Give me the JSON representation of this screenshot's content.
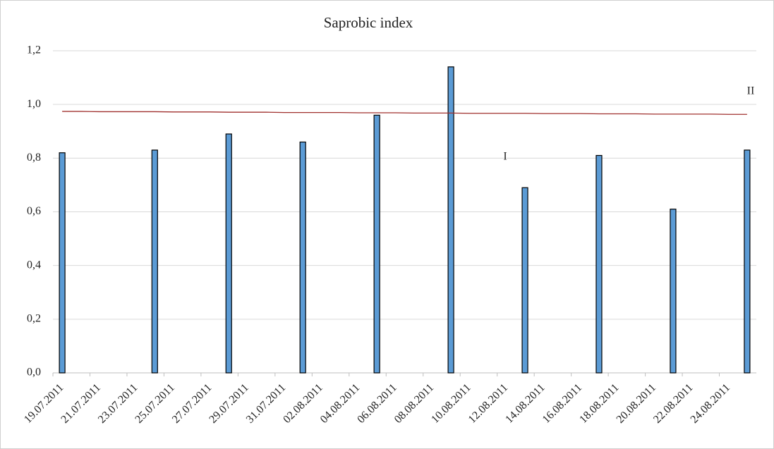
{
  "chart_data": {
    "type": "bar",
    "title": "Saprobic index",
    "categories": [
      "19.07.2011",
      null,
      "21.07.2011",
      null,
      "23.07.2011",
      null,
      "25.07.2011",
      null,
      "27.07.2011",
      null,
      "29.07.2011",
      null,
      "31.07.2011",
      null,
      "02.08.2011",
      null,
      "04.08.2011",
      null,
      "06.08.2011",
      null,
      "08.08.2011",
      null,
      "10.08.2011",
      null,
      "12.08.2011",
      null,
      "14.08.2011",
      null,
      "16.08.2011",
      null,
      "18.08.2011",
      null,
      "20.08.2011",
      null,
      "22.08.2011",
      null,
      "24.08.2011",
      null
    ],
    "values": [
      0.82,
      null,
      null,
      null,
      null,
      0.83,
      null,
      null,
      null,
      0.89,
      null,
      null,
      null,
      0.86,
      null,
      null,
      null,
      0.96,
      null,
      null,
      null,
      1.14,
      null,
      null,
      null,
      0.69,
      null,
      null,
      null,
      0.81,
      null,
      null,
      null,
      0.61,
      null,
      null,
      null,
      0.83
    ],
    "color": "#5b9bd5",
    "trend": {
      "color": "#a0302e",
      "values": [
        0.974,
        0.974,
        0.973,
        0.973,
        0.973,
        0.973,
        0.972,
        0.972,
        0.972,
        0.971,
        0.971,
        0.971,
        0.97,
        0.97,
        0.97,
        0.97,
        0.969,
        0.969,
        0.969,
        0.968,
        0.968,
        0.968,
        0.967,
        0.967,
        0.967,
        0.967,
        0.966,
        0.966,
        0.966,
        0.965,
        0.965,
        0.965,
        0.964,
        0.964,
        0.964,
        0.964,
        0.963,
        0.963
      ]
    },
    "annotations": [
      "I",
      "II"
    ],
    "ylim": [
      0,
      1.2
    ],
    "yticks": [
      {
        "value": 0,
        "label": "0,0"
      },
      {
        "value": 0.2,
        "label": "0,2"
      },
      {
        "value": 0.4,
        "label": "0,4"
      },
      {
        "value": 0.6,
        "label": "0,6"
      },
      {
        "value": 0.8,
        "label": "0,8"
      },
      {
        "value": 1.0,
        "label": "1,0"
      },
      {
        "value": 1.2,
        "label": "1,2"
      }
    ],
    "grid": true
  }
}
